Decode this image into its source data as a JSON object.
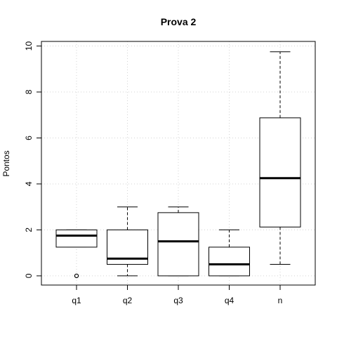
{
  "chart_data": {
    "type": "boxplot",
    "title": "Prova 2",
    "xlabel": "",
    "ylabel": "Pontos",
    "ylim": [
      -0.4,
      10.2
    ],
    "yticks": [
      0,
      2,
      4,
      6,
      8,
      10
    ],
    "grid": true,
    "categories": [
      "q1",
      "q2",
      "q3",
      "q4",
      "n"
    ],
    "boxes": [
      {
        "category": "q1",
        "whisker_low": 1.25,
        "q1": 1.25,
        "median": 1.75,
        "q3": 2.0,
        "whisker_high": 2.0,
        "outliers": [
          0
        ]
      },
      {
        "category": "q2",
        "whisker_low": 0.0,
        "q1": 0.5,
        "median": 0.75,
        "q3": 2.0,
        "whisker_high": 3.0,
        "outliers": []
      },
      {
        "category": "q3",
        "whisker_low": 0.0,
        "q1": 0.0,
        "median": 1.5,
        "q3": 2.75,
        "whisker_high": 3.0,
        "outliers": []
      },
      {
        "category": "q4",
        "whisker_low": 0.0,
        "q1": 0.0,
        "median": 0.5,
        "q3": 1.25,
        "whisker_high": 2.0,
        "outliers": []
      },
      {
        "category": "n",
        "whisker_low": 0.5,
        "q1": 2.125,
        "median": 4.25,
        "q3": 6.875,
        "whisker_high": 9.75,
        "outliers": []
      }
    ]
  }
}
